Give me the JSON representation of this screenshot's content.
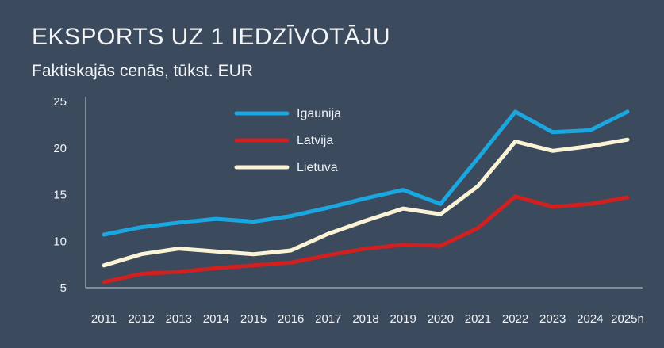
{
  "title": "EKSPORTS UZ 1 IEDZĪVOTĀJU",
  "subtitle": "Faktiskajās cenās, tūkst. EUR",
  "chart_data": {
    "type": "line",
    "title": "EKSPORTS UZ 1 IEDZĪVOTĀJU",
    "subtitle": "Faktiskajās cenās, tūkst. EUR",
    "xlabel": "",
    "ylabel": "",
    "x": [
      "2011",
      "2012",
      "2013",
      "2014",
      "2015",
      "2016",
      "2017",
      "2018",
      "2019",
      "2020",
      "2021",
      "2022",
      "2023",
      "2024",
      "2025n"
    ],
    "ylim": [
      5,
      25
    ],
    "yticks": [
      "25",
      "20",
      "15",
      "10",
      "5"
    ],
    "grid": false,
    "legend_position": "top-center",
    "series": [
      {
        "name": "Igaunija",
        "color": "#1aa7e0",
        "values": [
          10.7,
          11.5,
          12.0,
          12.4,
          12.1,
          12.7,
          13.6,
          14.6,
          15.5,
          14.0,
          18.9,
          23.9,
          21.7,
          21.9,
          23.9
        ]
      },
      {
        "name": "Latvija",
        "color": "#d0201f",
        "values": [
          5.6,
          6.5,
          6.7,
          7.1,
          7.4,
          7.7,
          8.5,
          9.2,
          9.6,
          9.5,
          11.4,
          14.8,
          13.7,
          14.0,
          14.7
        ]
      },
      {
        "name": "Lietuva",
        "color": "#fbf3d6",
        "values": [
          7.4,
          8.6,
          9.2,
          8.9,
          8.6,
          9.0,
          10.8,
          12.2,
          13.5,
          12.9,
          15.9,
          20.7,
          19.7,
          20.2,
          20.9
        ]
      }
    ]
  }
}
